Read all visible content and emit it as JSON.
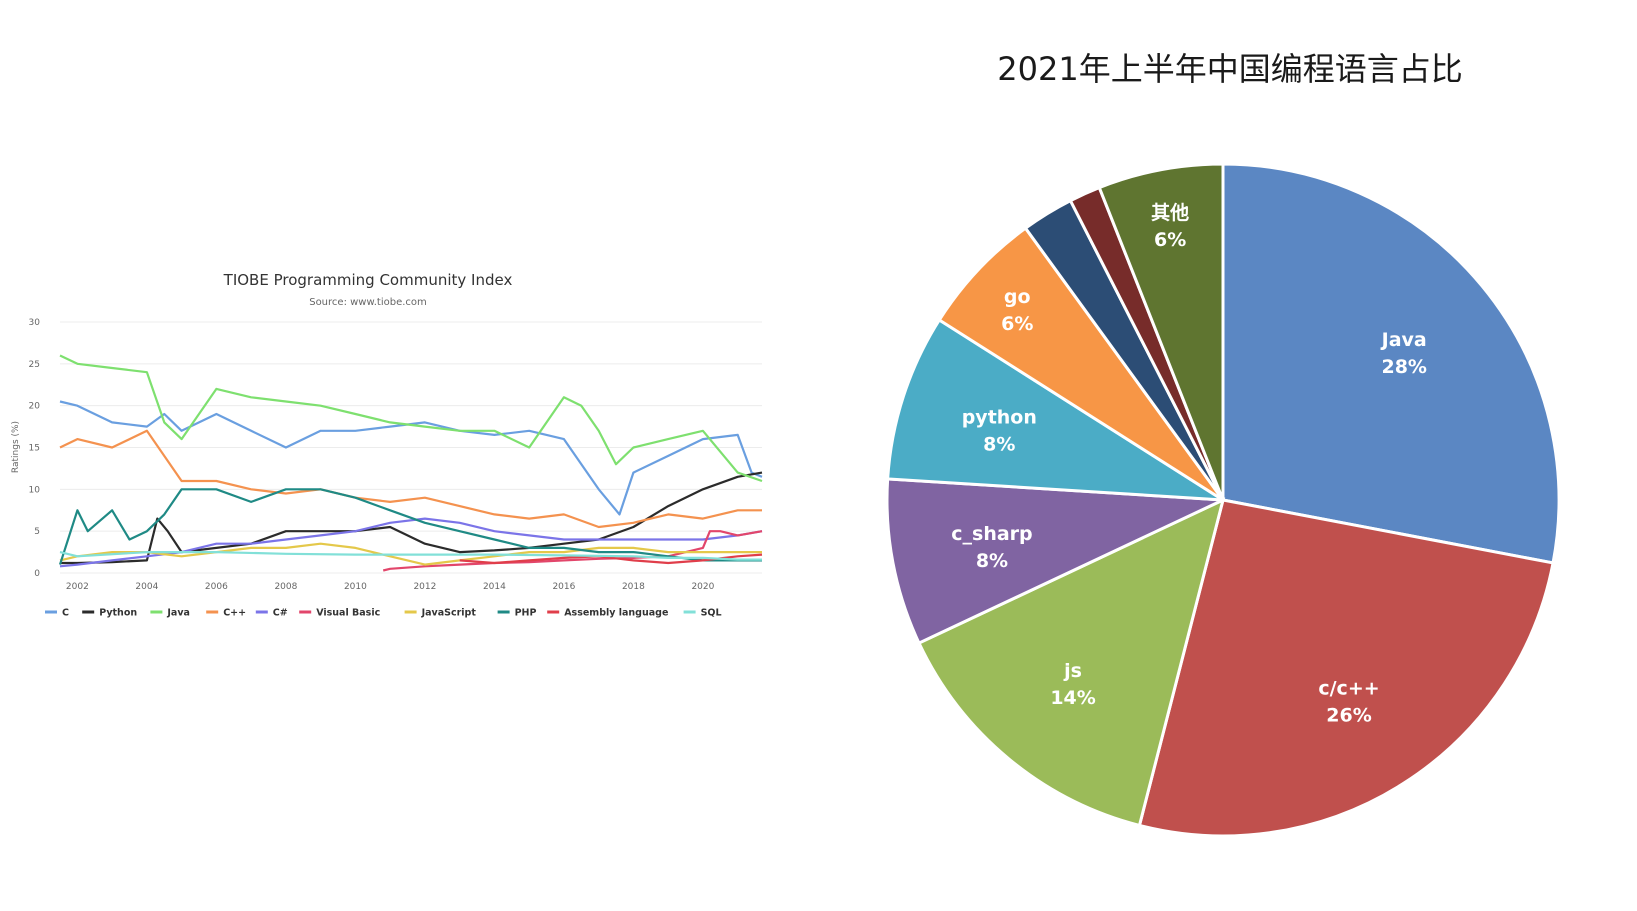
{
  "chart_data": [
    {
      "type": "line",
      "title": "TIOBE Programming Community Index",
      "subtitle": "Source: www.tiobe.com",
      "ylabel": "Ratings (%)",
      "xlabel": "",
      "ylim": [
        0,
        30
      ],
      "y_ticks": [
        0,
        5,
        10,
        15,
        20,
        25,
        30
      ],
      "x_ticks": [
        2002,
        2004,
        2006,
        2008,
        2010,
        2012,
        2014,
        2016,
        2018,
        2020
      ],
      "xlim": [
        2001.5,
        2021.7
      ],
      "grid": true,
      "legend": "bottom",
      "series": [
        {
          "name": "C",
          "color": "#6a9fe0",
          "x": [
            2001.5,
            2002,
            2003,
            2004,
            2004.5,
            2005,
            2006,
            2007,
            2008,
            2009,
            2010,
            2011,
            2012,
            2013,
            2014,
            2015,
            2016,
            2017,
            2017.6,
            2018,
            2019,
            2020,
            2021,
            2021.4,
            2021.7
          ],
          "y": [
            20.5,
            20,
            18,
            17.5,
            19,
            17,
            19,
            17,
            15,
            17,
            17,
            17.5,
            18,
            17,
            16.5,
            17,
            16,
            10,
            7,
            12,
            14,
            16,
            16.5,
            12,
            11.5
          ]
        },
        {
          "name": "Python",
          "color": "#2b2b2b",
          "x": [
            2001.5,
            2002,
            2003,
            2004,
            2004.3,
            2004.6,
            2005,
            2006,
            2007,
            2008,
            2009,
            2010,
            2011,
            2012,
            2013,
            2014,
            2015,
            2016,
            2017,
            2018,
            2019,
            2020,
            2021,
            2021.7
          ],
          "y": [
            1.2,
            1.2,
            1.3,
            1.5,
            6.5,
            5,
            2.5,
            3,
            3.5,
            5,
            5,
            5,
            5.5,
            3.5,
            2.5,
            2.7,
            3,
            3.5,
            4,
            5.5,
            8,
            10,
            11.5,
            12
          ]
        },
        {
          "name": "Java",
          "color": "#7ee06f",
          "x": [
            2001.5,
            2002,
            2003,
            2004,
            2004.5,
            2005,
            2006,
            2007,
            2008,
            2009,
            2010,
            2011,
            2012,
            2013,
            2014,
            2015,
            2016,
            2016.5,
            2017,
            2017.5,
            2018,
            2019,
            2020,
            2021,
            2021.7
          ],
          "y": [
            26,
            25,
            24.5,
            24,
            18,
            16,
            22,
            21,
            20.5,
            20,
            19,
            18,
            17.5,
            17,
            17,
            15,
            21,
            20,
            17,
            13,
            15,
            16,
            17,
            12,
            11
          ]
        },
        {
          "name": "C++",
          "color": "#f4924f",
          "x": [
            2001.5,
            2002,
            2003,
            2004,
            2005,
            2006,
            2007,
            2008,
            2009,
            2010,
            2011,
            2012,
            2013,
            2014,
            2015,
            2016,
            2017,
            2018,
            2019,
            2020,
            2021,
            2021.7
          ],
          "y": [
            15,
            16,
            15,
            17,
            11,
            11,
            10,
            9.5,
            10,
            9,
            8.5,
            9,
            8,
            7,
            6.5,
            7,
            5.5,
            6,
            7,
            6.5,
            7.5,
            7.5
          ]
        },
        {
          "name": "C#",
          "color": "#7b74e8",
          "x": [
            2001.5,
            2002,
            2003,
            2004,
            2005,
            2006,
            2007,
            2008,
            2009,
            2010,
            2011,
            2012,
            2013,
            2014,
            2015,
            2016,
            2017,
            2018,
            2019,
            2020,
            2021,
            2021.7
          ],
          "y": [
            0.8,
            1,
            1.5,
            2,
            2.5,
            3.5,
            3.5,
            4,
            4.5,
            5,
            6,
            6.5,
            6,
            5,
            4.5,
            4,
            4,
            4,
            4,
            4,
            4.5,
            5
          ]
        },
        {
          "name": "Visual Basic",
          "color": "#e2466b",
          "x": [
            2010.8,
            2011,
            2012,
            2013,
            2014,
            2015,
            2016,
            2017,
            2018,
            2019,
            2020,
            2020.2,
            2020.5,
            2021,
            2021.7
          ],
          "y": [
            0.3,
            0.5,
            0.8,
            1,
            1.2,
            1.3,
            1.5,
            1.7,
            1.8,
            2,
            3,
            5,
            5,
            4.5,
            5
          ]
        },
        {
          "name": "JavaScript",
          "color": "#e4c84a",
          "x": [
            2001.5,
            2002,
            2003,
            2004,
            2005,
            2006,
            2007,
            2008,
            2009,
            2010,
            2011,
            2012,
            2013,
            2014,
            2015,
            2016,
            2017,
            2018,
            2019,
            2020,
            2021,
            2021.7
          ],
          "y": [
            1.5,
            2,
            2.5,
            2.5,
            2,
            2.5,
            3,
            3,
            3.5,
            3,
            2,
            1,
            1.5,
            2,
            2.5,
            2.5,
            3,
            3,
            2.5,
            2.5,
            2.5,
            2.5
          ]
        },
        {
          "name": "PHP",
          "color": "#1f8a85",
          "x": [
            2001.5,
            2002,
            2002.3,
            2003,
            2003.5,
            2004,
            2004.5,
            2005,
            2006,
            2007,
            2008,
            2009,
            2010,
            2011,
            2012,
            2013,
            2014,
            2015,
            2016,
            2017,
            2018,
            2019,
            2020,
            2021,
            2021.7
          ],
          "y": [
            1,
            7.5,
            5,
            7.5,
            4,
            5,
            7,
            10,
            10,
            8.5,
            10,
            10,
            9,
            7.5,
            6,
            5,
            4,
            3,
            3,
            2.5,
            2.5,
            2,
            1.5,
            1.5,
            1.5
          ]
        },
        {
          "name": "Assembly language",
          "color": "#e03e4a",
          "x": [
            2013,
            2014,
            2015,
            2016,
            2017,
            2018,
            2019,
            2020,
            2021,
            2021.7
          ],
          "y": [
            1.5,
            1.2,
            1.5,
            1.8,
            2,
            1.5,
            1.2,
            1.5,
            2,
            2.2
          ]
        },
        {
          "name": "SQL",
          "color": "#82e0d8",
          "x": [
            2001.5,
            2002,
            2004,
            2006,
            2008,
            2010,
            2012,
            2014,
            2016,
            2018,
            2019,
            2020,
            2021,
            2021.7
          ],
          "y": [
            2.5,
            2,
            2.5,
            2.5,
            2.3,
            2.2,
            2.2,
            2.2,
            2.1,
            2,
            1.8,
            1.8,
            1.6,
            1.6
          ]
        }
      ]
    },
    {
      "type": "pie",
      "title": "2021年上半年中国编程语言占比",
      "slices": [
        {
          "label": "Java",
          "value": 28,
          "pct": "28%",
          "color": "#5b87c3",
          "show_label": true
        },
        {
          "label": "c/c++",
          "value": 26,
          "pct": "26%",
          "color": "#c0504d",
          "show_label": true
        },
        {
          "label": "js",
          "value": 14,
          "pct": "14%",
          "color": "#9bbb59",
          "show_label": true
        },
        {
          "label": "c_sharp",
          "value": 8,
          "pct": "8%",
          "color": "#8064a2",
          "show_label": true
        },
        {
          "label": "python",
          "value": 8,
          "pct": "8%",
          "color": "#4bacc6",
          "show_label": true
        },
        {
          "label": "go",
          "value": 6,
          "pct": "6%",
          "color": "#f79646",
          "show_label": true
        },
        {
          "label": "",
          "value": 2.5,
          "pct": "",
          "color": "#2c4d75",
          "show_label": false
        },
        {
          "label": "",
          "value": 1.5,
          "pct": "",
          "color": "#772c2a",
          "show_label": false
        },
        {
          "label": "其他",
          "value": 6,
          "pct": "6%",
          "color": "#5f7530",
          "show_label": true
        }
      ]
    }
  ]
}
